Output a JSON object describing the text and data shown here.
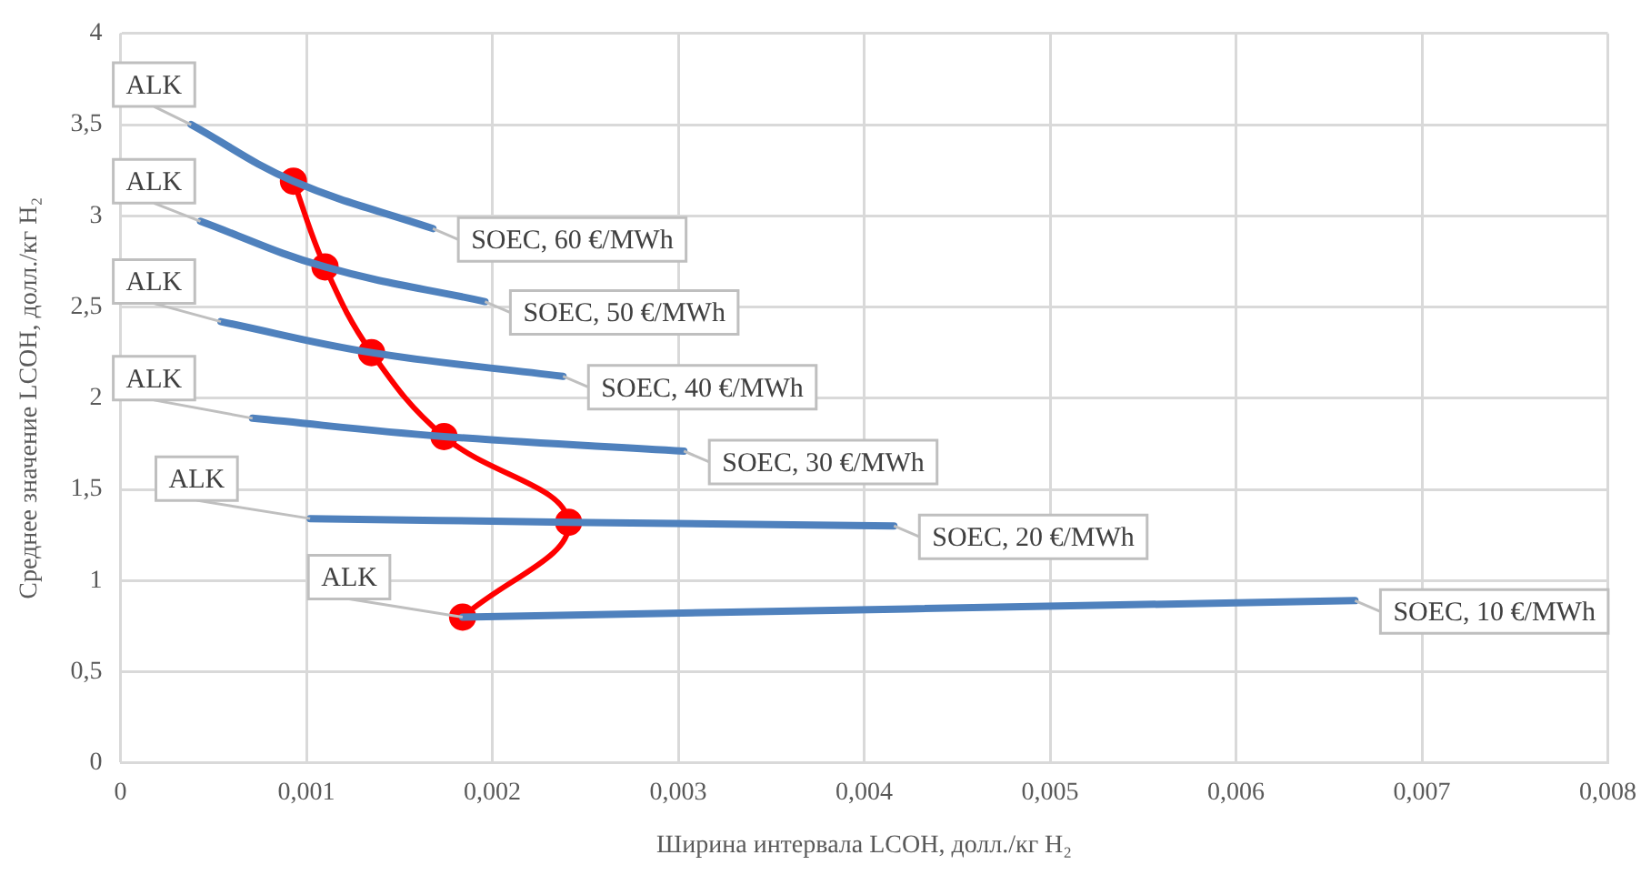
{
  "chart_data": {
    "type": "line",
    "xlabel": "Ширина интервала LCOH, долл./кг H₂",
    "ylabel": "Среднее значение LCOH, долл./кг H₂",
    "series": [
      {
        "color": "#4f81bd",
        "x": [
          0.00038,
          0.00093,
          0.00168
        ],
        "values": [
          3.5,
          3.19,
          2.93
        ],
        "marker": "none"
      },
      {
        "color": "#4f81bd",
        "x": [
          0.00043,
          0.0011,
          0.00196
        ],
        "values": [
          2.97,
          2.72,
          2.53
        ],
        "marker": "none"
      },
      {
        "color": "#4f81bd",
        "x": [
          0.00054,
          0.00135,
          0.00238
        ],
        "values": [
          2.42,
          2.25,
          2.12
        ],
        "marker": "none"
      },
      {
        "color": "#4f81bd",
        "x": [
          0.00071,
          0.00174,
          0.00303
        ],
        "values": [
          1.89,
          1.79,
          1.71
        ],
        "marker": "none"
      },
      {
        "color": "#4f81bd",
        "x": [
          0.00102,
          0.00241,
          0.00416
        ],
        "values": [
          1.34,
          1.32,
          1.3
        ],
        "marker": "none"
      },
      {
        "color": "#4f81bd",
        "x": [
          0.00184,
          0.00664
        ],
        "values": [
          0.8,
          0.89
        ],
        "marker": "none"
      },
      {
        "color": "#ff0000",
        "x": [
          0.00093,
          0.0011,
          0.00135,
          0.00174,
          0.00241,
          0.00184
        ],
        "values": [
          3.19,
          2.72,
          2.25,
          1.79,
          1.32,
          0.8
        ],
        "marker": "circle"
      }
    ],
    "annotations": [
      {
        "text": "ALK",
        "x": 0.00038,
        "y": 3.5
      },
      {
        "text": "SOEC, 60 €/MWh",
        "x": 0.00168,
        "y": 2.93
      },
      {
        "text": "ALK",
        "x": 0.00043,
        "y": 2.97
      },
      {
        "text": "SOEC, 50 €/MWh",
        "x": 0.00196,
        "y": 2.53
      },
      {
        "text": "ALK",
        "x": 0.00054,
        "y": 2.42
      },
      {
        "text": "SOEC, 40 €/MWh",
        "x": 0.00238,
        "y": 2.12
      },
      {
        "text": "ALK",
        "x": 0.00071,
        "y": 1.89
      },
      {
        "text": "SOEC, 30 €/MWh",
        "x": 0.00303,
        "y": 1.71
      },
      {
        "text": "ALK",
        "x": 0.00102,
        "y": 1.34
      },
      {
        "text": "SOEC, 20 €/MWh",
        "x": 0.00416,
        "y": 1.3
      },
      {
        "text": "ALK",
        "x": 0.00184,
        "y": 0.8
      },
      {
        "text": "SOEC, 10 €/MWh",
        "x": 0.00664,
        "y": 0.89
      }
    ],
    "xlim": [
      0,
      0.008
    ],
    "xticks": [
      0,
      {
        "value": 0.001,
        "label": "0,001"
      },
      {
        "value": 0.002,
        "label": "0,002"
      },
      {
        "value": 0.003,
        "label": "0,003"
      },
      {
        "value": 0.004,
        "label": "0,004"
      },
      {
        "value": 0.005,
        "label": "0,005"
      },
      {
        "value": 0.006,
        "label": "0,006"
      },
      {
        "value": 0.007,
        "label": "0,007"
      },
      {
        "value": 0.008,
        "label": "0,008"
      }
    ],
    "ylim": [
      0,
      4
    ],
    "yticks": [
      0,
      {
        "value": 0.5,
        "label": "0,5"
      },
      1,
      {
        "value": 1.5,
        "label": "1,5"
      },
      2,
      {
        "value": 2.5,
        "label": "2,5"
      },
      3,
      {
        "value": 3.5,
        "label": "3,5"
      },
      4
    ],
    "grid": true,
    "legend": false
  }
}
